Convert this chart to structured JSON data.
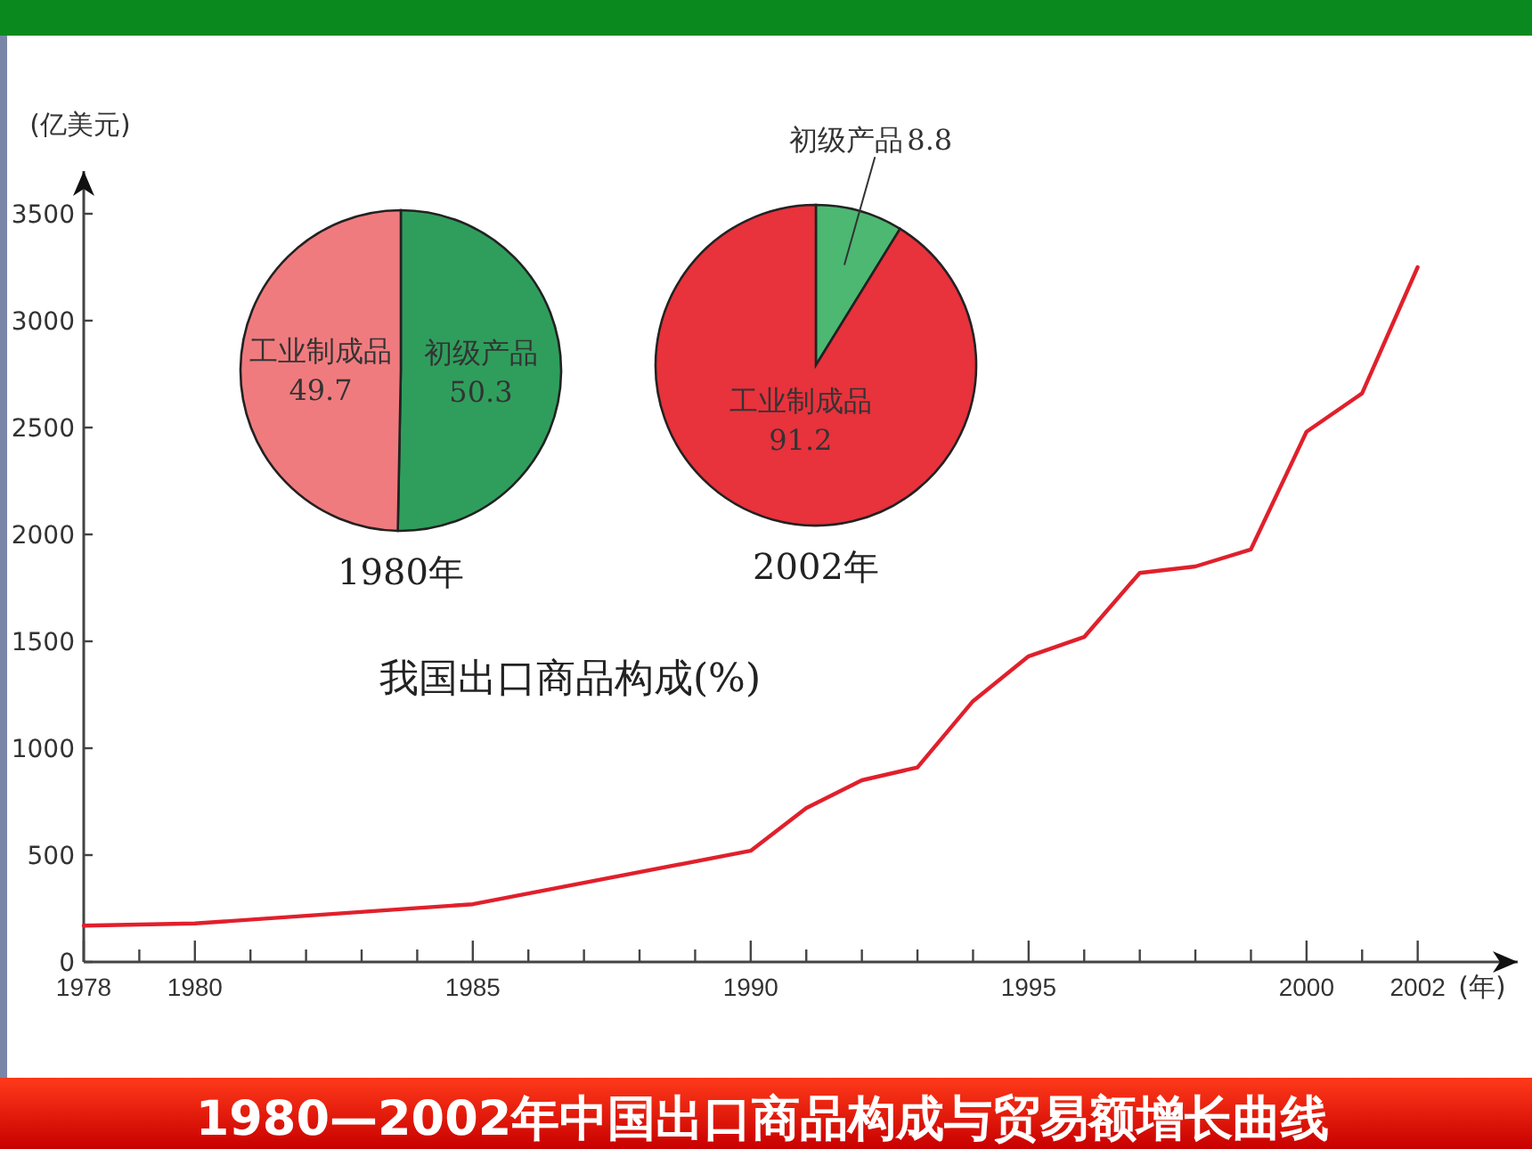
{
  "chart_data": [
    {
      "type": "line",
      "title": "1980—2002年中国出口商品构成与贸易额增长曲线",
      "xlabel": "(年)",
      "ylabel": "(亿美元)",
      "x": [
        1978,
        1980,
        1985,
        1990,
        1991,
        1992,
        1993,
        1994,
        1995,
        1996,
        1997,
        1998,
        1999,
        2000,
        2001,
        2002
      ],
      "series": [
        {
          "color": "#e0202c",
          "values": [
            170,
            180,
            270,
            520,
            720,
            850,
            910,
            1220,
            1430,
            1520,
            1820,
            1850,
            1930,
            2480,
            2660,
            3250
          ]
        }
      ],
      "xlim": [
        1978,
        2003.8
      ],
      "ylim": [
        0,
        3700
      ],
      "xticks": [
        1978,
        {
          "value": 1979,
          "label": null
        },
        1980,
        {
          "value": 1981,
          "label": null
        },
        {
          "value": 1982,
          "label": null
        },
        {
          "value": 1983,
          "label": null
        },
        {
          "value": 1984,
          "label": null
        },
        1985,
        {
          "value": 1986,
          "label": null
        },
        {
          "value": 1987,
          "label": null
        },
        {
          "value": 1988,
          "label": null
        },
        {
          "value": 1989,
          "label": null
        },
        1990,
        {
          "value": 1991,
          "label": null
        },
        {
          "value": 1992,
          "label": null
        },
        {
          "value": 1993,
          "label": null
        },
        {
          "value": 1994,
          "label": null
        },
        1995,
        {
          "value": 1996,
          "label": null
        },
        {
          "value": 1997,
          "label": null
        },
        {
          "value": 1998,
          "label": null
        },
        {
          "value": 1999,
          "label": null
        },
        2000,
        {
          "value": 2001,
          "label": null
        },
        2002
      ],
      "yticks": [
        0,
        500,
        1000,
        1500,
        2000,
        2500,
        3000,
        3500
      ],
      "grid": false
    },
    {
      "type": "pie",
      "title": "1980年",
      "categories": [
        "初级产品",
        "工业制成品"
      ],
      "values": [
        50.3,
        49.7
      ],
      "colors": [
        "#2f9e5c",
        "#f07b7f"
      ],
      "value_labels": [
        "50.3",
        "49.7"
      ],
      "annotations": [
        "我国出口商品构成(%)"
      ]
    },
    {
      "type": "pie",
      "title": "2002年",
      "categories": [
        "初级产品",
        "工业制成品"
      ],
      "values": [
        8.8,
        91.2
      ],
      "colors": [
        "#4cb872",
        "#e8323c"
      ],
      "value_labels": [
        "8.8",
        "91.2"
      ]
    }
  ]
}
